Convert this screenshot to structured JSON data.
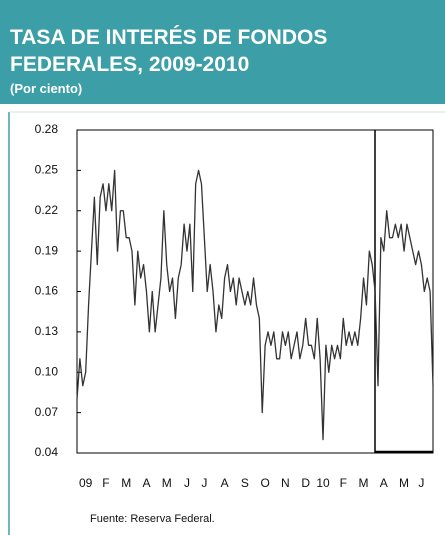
{
  "chart_data": {
    "type": "line",
    "title": "TASA DE INTERÉS DE FONDOS FEDERALES, 2009-2010",
    "subtitle": "(Por ciento)",
    "source": "Fuente:  Reserva Federal.",
    "color": "#333333",
    "grid": false,
    "categories": [
      null,
      null,
      null,
      "09",
      null,
      null,
      null,
      null,
      null,
      null,
      "F",
      null,
      null,
      null,
      null,
      null,
      null,
      "M",
      null,
      null,
      null,
      null,
      null,
      null,
      "A",
      null,
      null,
      null,
      null,
      null,
      null,
      "M",
      null,
      null,
      null,
      null,
      null,
      null,
      "J",
      null,
      null,
      null,
      null,
      null,
      "J",
      null,
      null,
      null,
      null,
      null,
      null,
      "A",
      null,
      null,
      null,
      null,
      null,
      null,
      "S",
      null,
      null,
      null,
      null,
      null,
      null,
      "O",
      null,
      null,
      null,
      null,
      null,
      null,
      "N",
      null,
      null,
      null,
      null,
      null,
      null,
      "D",
      null,
      null,
      null,
      null,
      null,
      "10",
      null,
      null,
      null,
      null,
      null,
      null,
      "F",
      null,
      null,
      null,
      null,
      null,
      null,
      "M",
      null,
      null,
      null,
      null,
      null,
      null,
      "A",
      null,
      null,
      null,
      null,
      null,
      null,
      "M",
      null,
      null,
      null,
      null,
      null,
      "J",
      null,
      null,
      null,
      null
    ],
    "values": [
      0.08,
      0.11,
      0.09,
      0.1,
      0.15,
      0.19,
      0.23,
      0.18,
      0.23,
      0.24,
      0.22,
      0.24,
      0.22,
      0.25,
      0.19,
      0.22,
      0.22,
      0.2,
      0.2,
      0.19,
      0.15,
      0.19,
      0.17,
      0.18,
      0.16,
      0.13,
      0.16,
      0.13,
      0.15,
      0.17,
      0.22,
      0.18,
      0.16,
      0.17,
      0.14,
      0.17,
      0.18,
      0.21,
      0.19,
      0.21,
      0.16,
      0.24,
      0.25,
      0.24,
      0.2,
      0.16,
      0.18,
      0.16,
      0.13,
      0.15,
      0.14,
      0.17,
      0.18,
      0.16,
      0.17,
      0.15,
      0.17,
      0.16,
      0.15,
      0.16,
      0.15,
      0.17,
      0.15,
      0.14,
      0.07,
      0.12,
      0.13,
      0.12,
      0.13,
      0.11,
      0.11,
      0.13,
      0.12,
      0.13,
      0.11,
      0.12,
      0.13,
      0.11,
      0.12,
      0.14,
      0.12,
      0.12,
      0.11,
      0.14,
      0.11,
      0.05,
      0.12,
      0.1,
      0.12,
      0.11,
      0.12,
      0.11,
      0.14,
      0.12,
      0.13,
      0.12,
      0.13,
      0.12,
      0.14,
      0.17,
      0.15,
      0.19,
      0.18,
      0.16,
      0.09,
      0.2,
      0.19,
      0.22,
      0.2,
      0.2,
      0.21,
      0.2,
      0.21,
      0.19,
      0.21,
      0.2,
      0.19,
      0.18,
      0.19,
      0.18,
      0.16,
      0.17,
      0.16,
      0.09
    ],
    "ylim": [
      0.04,
      0.28
    ],
    "yticks": [
      0.04,
      0.07,
      {
        "value": 0.1,
        "label": "0.10"
      },
      0.13,
      0.16,
      0.19,
      0.22,
      0.25,
      0.28
    ]
  }
}
